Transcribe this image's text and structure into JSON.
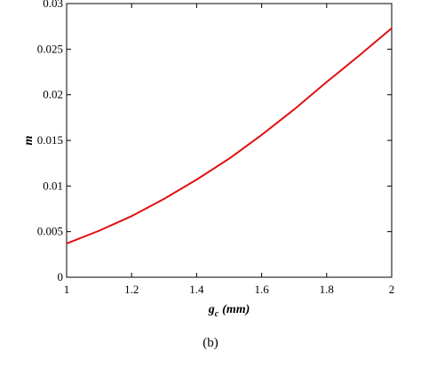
{
  "chart_data": {
    "type": "line",
    "x_label_symbol": "g",
    "x_label_subscript": "c",
    "x_label_unit": "(mm)",
    "y_label": "m",
    "caption": "(b)",
    "x": [
      1,
      1.1,
      1.2,
      1.3,
      1.4,
      1.5,
      1.6,
      1.7,
      1.8,
      1.9,
      2
    ],
    "series": [
      {
        "color": "#e01010",
        "values": [
          0.0037,
          0.0051,
          0.0067,
          0.0086,
          0.0107,
          0.013,
          0.0156,
          0.0184,
          0.0214,
          0.0243,
          0.0273
        ]
      }
    ],
    "xlim": [
      1,
      2
    ],
    "xticks": [
      1,
      1.2,
      1.4,
      1.6,
      1.8,
      2
    ],
    "ylim": [
      0,
      0.03
    ],
    "yticks": [
      0,
      0.005,
      0.01,
      0.015,
      0.02,
      0.025,
      0.03
    ]
  }
}
